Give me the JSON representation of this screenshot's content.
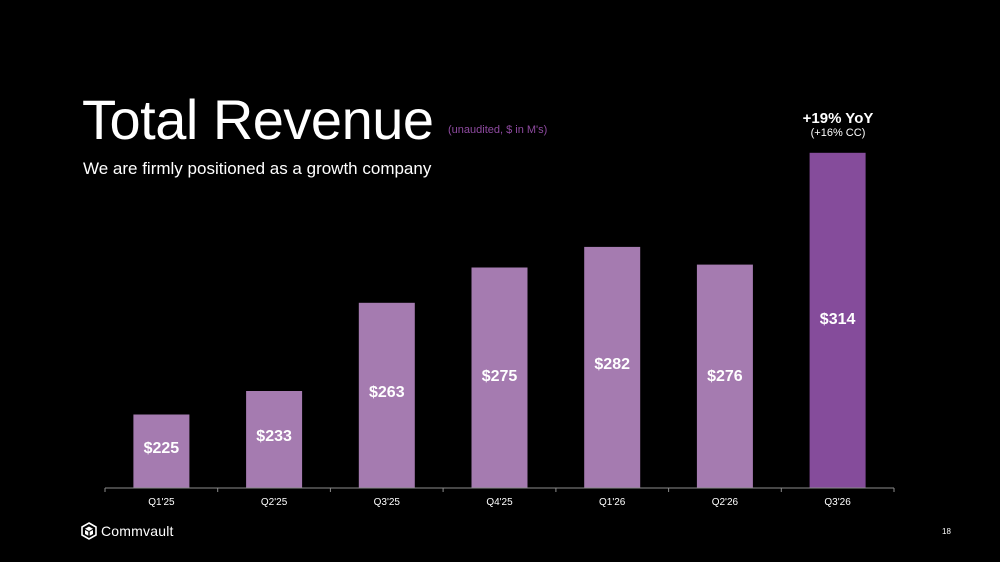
{
  "slide": {
    "title": "Total Revenue",
    "title_note": "(unaudited, $ in M's)",
    "subtitle": "We are firmly positioned as a growth company",
    "highlight_main": "+19% YoY",
    "highlight_sub": "(+16% CC)",
    "logo_text": "Commvault",
    "page_number": "18"
  },
  "colors": {
    "bar": "#a57bb0",
    "bar_highlight": "#854c9b",
    "axis": "#8c8c8c",
    "note": "#8e4aa0"
  },
  "chart_data": {
    "type": "bar",
    "title": "Total Revenue",
    "xlabel": "",
    "ylabel": "",
    "categories": [
      "Q1'25",
      "Q2'25",
      "Q3'25",
      "Q4'25",
      "Q1'26",
      "Q2'26",
      "Q3'26"
    ],
    "values": [
      225,
      233,
      263,
      275,
      282,
      276,
      314
    ],
    "labels": [
      "$225",
      "$233",
      "$263",
      "$275",
      "$282",
      "$276",
      "$314"
    ],
    "ylim": [
      200,
      320
    ],
    "grid": false,
    "highlight_index": 6
  }
}
